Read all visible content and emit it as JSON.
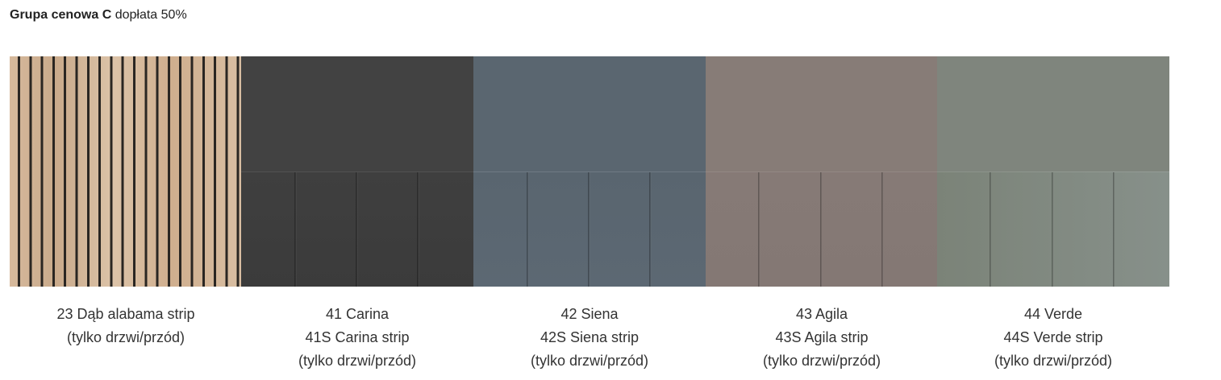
{
  "header": {
    "title": "Grupa cenowa C",
    "subtitle": "dopłata 50%"
  },
  "swatches": [
    {
      "lines": [
        "23 Dąb alabama strip",
        "(tylko drzwi/przód)"
      ]
    },
    {
      "lines": [
        "41 Carina",
        "41S Carina strip",
        "(tylko drzwi/przód)"
      ]
    },
    {
      "lines": [
        "42 Siena",
        "42S Siena strip",
        "(tylko drzwi/przód)"
      ]
    },
    {
      "lines": [
        "43 Agila",
        "43S Agila strip",
        "(tylko drzwi/przód)"
      ]
    },
    {
      "lines": [
        "44 Verde",
        "44S Verde strip",
        "(tylko drzwi/przód)"
      ]
    }
  ]
}
